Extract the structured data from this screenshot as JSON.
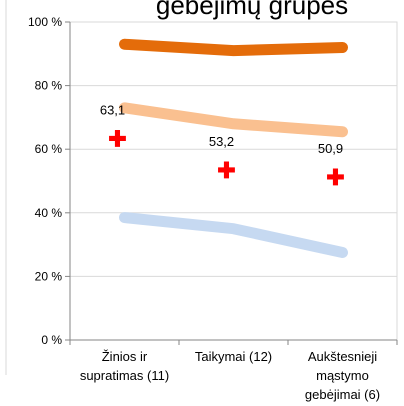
{
  "chart_data": {
    "type": "line",
    "title": "gebėjimų grupės",
    "categories": [
      [
        "Žinios ir",
        "supratimas (11)"
      ],
      [
        "Taikymai (12)"
      ],
      [
        "Aukštesnieji",
        "mąstymo",
        "gebėjimai (6)"
      ]
    ],
    "y_ticks": [
      "0 %",
      "20 %",
      "40 %",
      "60 %",
      "80 %",
      "100 %"
    ],
    "ylim": [
      0,
      100
    ],
    "grid": true,
    "series": [
      {
        "color": "#e46c0a",
        "values": [
          93,
          91,
          92
        ]
      },
      {
        "color": "#fac090",
        "values": [
          73,
          68,
          65.5
        ]
      },
      {
        "color": "#c6d9f1",
        "values": [
          38.5,
          35,
          27.5
        ]
      }
    ],
    "markers": {
      "symbol": "✚",
      "color": "#ff0000",
      "values": [
        63.1,
        53.2,
        50.9
      ],
      "labels": [
        "63,1",
        "53,2",
        "50,9"
      ]
    }
  }
}
